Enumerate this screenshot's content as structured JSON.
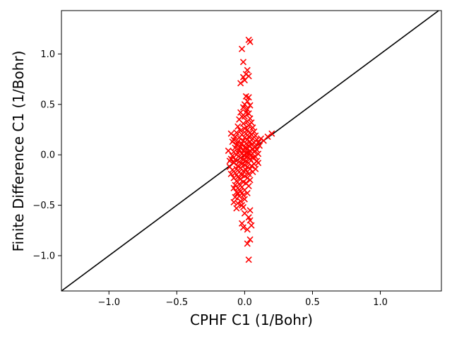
{
  "chart_data": {
    "type": "scatter",
    "title": "",
    "xlabel": "CPHF C1 (1/Bohr)",
    "ylabel": "Finite Difference C1 (1/Bohr)",
    "xlim": [
      -1.35,
      1.45
    ],
    "ylim": [
      -1.35,
      1.43
    ],
    "xticks": [
      -1.0,
      -0.5,
      0.0,
      0.5,
      1.0
    ],
    "xtick_labels": [
      "−1.0",
      "−0.5",
      "0.0",
      "0.5",
      "1.0"
    ],
    "yticks": [
      -1.0,
      -0.5,
      0.0,
      0.5,
      1.0
    ],
    "ytick_labels": [
      "−1.0",
      "−0.5",
      "0.0",
      "0.5",
      "1.0"
    ],
    "grid": false,
    "legend": "none",
    "marker": "x",
    "marker_color": "#ff0000",
    "reference_line": {
      "label": "y = x",
      "color": "#000000",
      "x": [
        -1.35,
        1.45
      ],
      "y": [
        -1.35,
        1.45
      ]
    },
    "points": [
      [
        0.03,
        1.14
      ],
      [
        0.04,
        1.12
      ],
      [
        -0.02,
        1.05
      ],
      [
        -0.01,
        0.92
      ],
      [
        0.02,
        0.84
      ],
      [
        0.01,
        0.8
      ],
      [
        -0.01,
        0.77
      ],
      [
        0.03,
        0.78
      ],
      [
        -0.03,
        0.71
      ],
      [
        0.0,
        0.74
      ],
      [
        0.01,
        0.58
      ],
      [
        0.03,
        0.57
      ],
      [
        0.02,
        0.53
      ],
      [
        0.0,
        0.5
      ],
      [
        -0.01,
        0.47
      ],
      [
        0.04,
        0.49
      ],
      [
        0.02,
        0.45
      ],
      [
        -0.03,
        0.42
      ],
      [
        0.01,
        0.42
      ],
      [
        0.03,
        0.41
      ],
      [
        -0.02,
        0.38
      ],
      [
        0.0,
        0.38
      ],
      [
        0.04,
        0.36
      ],
      [
        -0.04,
        0.35
      ],
      [
        0.02,
        0.33
      ],
      [
        0.05,
        0.32
      ],
      [
        -0.01,
        0.31
      ],
      [
        0.03,
        0.29
      ],
      [
        -0.05,
        0.28
      ],
      [
        0.06,
        0.27
      ],
      [
        0.0,
        0.26
      ],
      [
        0.02,
        0.25
      ],
      [
        -0.03,
        0.24
      ],
      [
        0.07,
        0.23
      ],
      [
        -0.06,
        0.22
      ],
      [
        0.04,
        0.22
      ],
      [
        0.01,
        0.21
      ],
      [
        -0.02,
        0.2
      ],
      [
        0.05,
        0.2
      ],
      [
        0.08,
        0.19
      ],
      [
        -0.07,
        0.18
      ],
      [
        0.03,
        0.18
      ],
      [
        -0.04,
        0.17
      ],
      [
        0.0,
        0.17
      ],
      [
        0.06,
        0.16
      ],
      [
        0.09,
        0.15
      ],
      [
        -0.08,
        0.15
      ],
      [
        0.02,
        0.15
      ],
      [
        -0.01,
        0.14
      ],
      [
        0.04,
        0.13
      ],
      [
        -0.05,
        0.13
      ],
      [
        0.07,
        0.12
      ],
      [
        0.1,
        0.12
      ],
      [
        -0.02,
        0.11
      ],
      [
        0.01,
        0.11
      ],
      [
        0.05,
        0.1
      ],
      [
        -0.06,
        0.1
      ],
      [
        0.03,
        0.09
      ],
      [
        -0.03,
        0.08
      ],
      [
        0.08,
        0.08
      ],
      [
        0.0,
        0.07
      ],
      [
        -0.07,
        0.07
      ],
      [
        0.06,
        0.06
      ],
      [
        0.02,
        0.06
      ],
      [
        -0.04,
        0.05
      ],
      [
        0.09,
        0.05
      ],
      [
        -0.01,
        0.04
      ],
      [
        0.04,
        0.04
      ],
      [
        -0.08,
        0.03
      ],
      [
        0.07,
        0.03
      ],
      [
        0.01,
        0.02
      ],
      [
        -0.05,
        0.02
      ],
      [
        0.03,
        0.01
      ],
      [
        -0.02,
        0.01
      ],
      [
        0.1,
        0.01
      ],
      [
        0.05,
        0.0
      ],
      [
        -0.06,
        0.0
      ],
      [
        0.0,
        -0.01
      ],
      [
        -0.09,
        -0.01
      ],
      [
        0.08,
        -0.02
      ],
      [
        0.02,
        -0.02
      ],
      [
        -0.03,
        -0.03
      ],
      [
        0.06,
        -0.03
      ],
      [
        -0.1,
        -0.04
      ],
      [
        0.04,
        -0.04
      ],
      [
        -0.01,
        -0.05
      ],
      [
        -0.07,
        -0.05
      ],
      [
        0.09,
        -0.06
      ],
      [
        0.01,
        -0.06
      ],
      [
        -0.04,
        -0.07
      ],
      [
        0.03,
        -0.08
      ],
      [
        -0.08,
        -0.08
      ],
      [
        0.07,
        -0.09
      ],
      [
        -0.02,
        -0.09
      ],
      [
        0.0,
        -0.1
      ],
      [
        -0.05,
        -0.11
      ],
      [
        0.05,
        -0.11
      ],
      [
        -0.11,
        -0.12
      ],
      [
        0.02,
        -0.12
      ],
      [
        -0.03,
        -0.13
      ],
      [
        0.04,
        -0.14
      ],
      [
        -0.06,
        -0.14
      ],
      [
        -0.09,
        -0.15
      ],
      [
        0.01,
        -0.15
      ],
      [
        -0.01,
        -0.16
      ],
      [
        0.06,
        -0.17
      ],
      [
        -0.04,
        -0.17
      ],
      [
        -0.07,
        -0.18
      ],
      [
        0.03,
        -0.19
      ],
      [
        -0.02,
        -0.2
      ],
      [
        0.0,
        -0.21
      ],
      [
        -0.05,
        -0.22
      ],
      [
        -0.08,
        -0.23
      ],
      [
        0.02,
        -0.23
      ],
      [
        -0.03,
        -0.24
      ],
      [
        0.04,
        -0.25
      ],
      [
        -0.06,
        -0.26
      ],
      [
        -0.01,
        -0.27
      ],
      [
        0.01,
        -0.28
      ],
      [
        -0.04,
        -0.29
      ],
      [
        -0.07,
        -0.3
      ],
      [
        0.03,
        -0.31
      ],
      [
        -0.02,
        -0.32
      ],
      [
        -0.05,
        -0.33
      ],
      [
        -0.08,
        -0.33
      ],
      [
        0.0,
        -0.35
      ],
      [
        -0.03,
        -0.36
      ],
      [
        -0.06,
        -0.37
      ],
      [
        0.02,
        -0.38
      ],
      [
        -0.01,
        -0.4
      ],
      [
        -0.04,
        -0.41
      ],
      [
        -0.07,
        -0.42
      ],
      [
        0.0,
        -0.44
      ],
      [
        -0.03,
        -0.46
      ],
      [
        -0.05,
        -0.48
      ],
      [
        -0.02,
        -0.5
      ],
      [
        -0.06,
        -0.53
      ],
      [
        0.04,
        -0.55
      ],
      [
        -0.01,
        -0.52
      ],
      [
        0.0,
        -0.58
      ],
      [
        0.03,
        -0.62
      ],
      [
        -0.02,
        -0.68
      ],
      [
        0.04,
        -0.65
      ],
      [
        0.05,
        -0.7
      ],
      [
        -0.01,
        -0.72
      ],
      [
        0.02,
        -0.74
      ],
      [
        0.02,
        -0.88
      ],
      [
        0.04,
        -0.84
      ],
      [
        0.03,
        -1.04
      ],
      [
        0.2,
        0.21
      ],
      [
        0.17,
        0.18
      ],
      [
        0.12,
        0.16
      ],
      [
        0.14,
        0.14
      ],
      [
        0.11,
        0.09
      ],
      [
        0.1,
        -0.08
      ],
      [
        0.08,
        -0.14
      ],
      [
        -0.12,
        0.04
      ],
      [
        -0.11,
        -0.06
      ],
      [
        -0.1,
        -0.19
      ],
      [
        -0.09,
        0.13
      ],
      [
        -0.1,
        0.21
      ],
      [
        -0.05,
        -0.38
      ],
      [
        -0.08,
        -0.47
      ]
    ]
  }
}
